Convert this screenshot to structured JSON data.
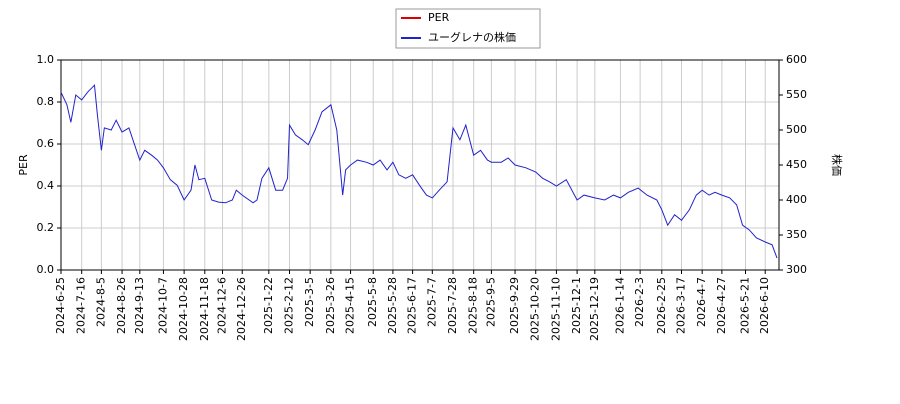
{
  "chart_data": {
    "type": "line",
    "ylabel": "PER",
    "y2label": "株価",
    "xlim": [
      "2024-6-25",
      "2026-6-24"
    ],
    "xticks": [
      "2024-6-25",
      "2024-7-16",
      "2024-8-5",
      "2024-8-26",
      "2024-9-13",
      "2024-10-7",
      "2024-10-28",
      "2024-11-18",
      "2024-12-6",
      "2024-12-26",
      "2025-1-22",
      "2025-2-12",
      "2025-3-5",
      "2025-3-26",
      "2025-4-15",
      "2025-5-8",
      "2025-5-28",
      "2025-6-17",
      "2025-7-7",
      "2025-7-28",
      "2025-8-18",
      "2025-9-5",
      "2025-9-29",
      "2025-10-20",
      "2025-11-10",
      "2025-12-1",
      "2025-12-19",
      "2026-1-14",
      "2026-2-3",
      "2026-2-25",
      "2026-3-17",
      "2026-4-7",
      "2026-4-27",
      "2026-5-21",
      "2026-6-10"
    ],
    "ylim": [
      0,
      1
    ],
    "yticks": [
      {
        "value": 0,
        "label": "0.0"
      },
      0.2,
      0.4,
      0.6,
      0.8,
      {
        "value": 1,
        "label": "1.0"
      }
    ],
    "y2lim": [
      300,
      600
    ],
    "y2ticks": [
      300,
      350,
      400,
      450,
      500,
      550,
      600
    ],
    "grid": true,
    "legend": "top",
    "series": [
      {
        "name": "PER",
        "color": "#dd0000",
        "x": [],
        "values": []
      },
      {
        "name": "ユーグレナの株価",
        "color": "#2222cc",
        "axis": "y2",
        "x": [
          "2024-6-25",
          "2024-7-1",
          "2024-7-5",
          "2024-7-10",
          "2024-7-16",
          "2024-7-22",
          "2024-7-29",
          "2024-8-1",
          "2024-8-5",
          "2024-8-8",
          "2024-8-15",
          "2024-8-20",
          "2024-8-26",
          "2024-9-2",
          "2024-9-6",
          "2024-9-13",
          "2024-9-18",
          "2024-9-25",
          "2024-10-1",
          "2024-10-7",
          "2024-10-14",
          "2024-10-21",
          "2024-10-28",
          "2024-11-4",
          "2024-11-8",
          "2024-11-12",
          "2024-11-18",
          "2024-11-25",
          "2024-12-2",
          "2024-12-9",
          "2024-12-16",
          "2024-12-20",
          "2024-12-26",
          "2025-1-6",
          "2025-1-10",
          "2025-1-15",
          "2025-1-22",
          "2025-1-29",
          "2025-2-5",
          "2025-2-10",
          "2025-2-12",
          "2025-2-18",
          "2025-2-25",
          "2025-3-3",
          "2025-3-10",
          "2025-3-17",
          "2025-3-26",
          "2025-4-1",
          "2025-4-7",
          "2025-4-10",
          "2025-4-15",
          "2025-4-22",
          "2025-5-1",
          "2025-5-8",
          "2025-5-15",
          "2025-5-22",
          "2025-5-28",
          "2025-6-3",
          "2025-6-10",
          "2025-6-17",
          "2025-6-24",
          "2025-7-1",
          "2025-7-7",
          "2025-7-14",
          "2025-7-22",
          "2025-7-28",
          "2025-8-4",
          "2025-8-10",
          "2025-8-18",
          "2025-8-25",
          "2025-9-1",
          "2025-9-5",
          "2025-9-15",
          "2025-9-22",
          "2025-9-29",
          "2025-10-10",
          "2025-10-20",
          "2025-10-27",
          "2025-11-3",
          "2025-11-10",
          "2025-11-20",
          "2025-12-1",
          "2025-12-8",
          "2025-12-19",
          "2025-12-29",
          "2026-1-7",
          "2026-1-14",
          "2026-1-22",
          "2026-2-1",
          "2026-2-10",
          "2026-2-20",
          "2026-2-25",
          "2026-3-3",
          "2026-3-10",
          "2026-3-17",
          "2026-3-25",
          "2026-4-1",
          "2026-4-7",
          "2026-4-14",
          "2026-4-20",
          "2026-4-27",
          "2026-5-5",
          "2026-5-12",
          "2026-5-18",
          "2026-5-25",
          "2026-6-1",
          "2026-6-10",
          "2026-6-17",
          "2026-6-22"
        ],
        "values": [
          554,
          536,
          511,
          550,
          543,
          554,
          564,
          521,
          471,
          503,
          500,
          514,
          497,
          503,
          486,
          457,
          471,
          464,
          457,
          446,
          429,
          421,
          400,
          414,
          450,
          429,
          431,
          400,
          397,
          396,
          400,
          414,
          407,
          396,
          400,
          431,
          446,
          414,
          414,
          431,
          507,
          493,
          486,
          479,
          500,
          526,
          536,
          500,
          407,
          443,
          450,
          457,
          454,
          450,
          457,
          443,
          454,
          436,
          431,
          436,
          421,
          407,
          403,
          414,
          426,
          503,
          486,
          507,
          464,
          471,
          457,
          454,
          454,
          460,
          450,
          446,
          440,
          431,
          426,
          420,
          429,
          400,
          407,
          403,
          400,
          407,
          403,
          411,
          417,
          407,
          400,
          386,
          364,
          379,
          371,
          386,
          407,
          414,
          407,
          411,
          407,
          403,
          393,
          364,
          357,
          346,
          340,
          336,
          317
        ]
      }
    ]
  }
}
